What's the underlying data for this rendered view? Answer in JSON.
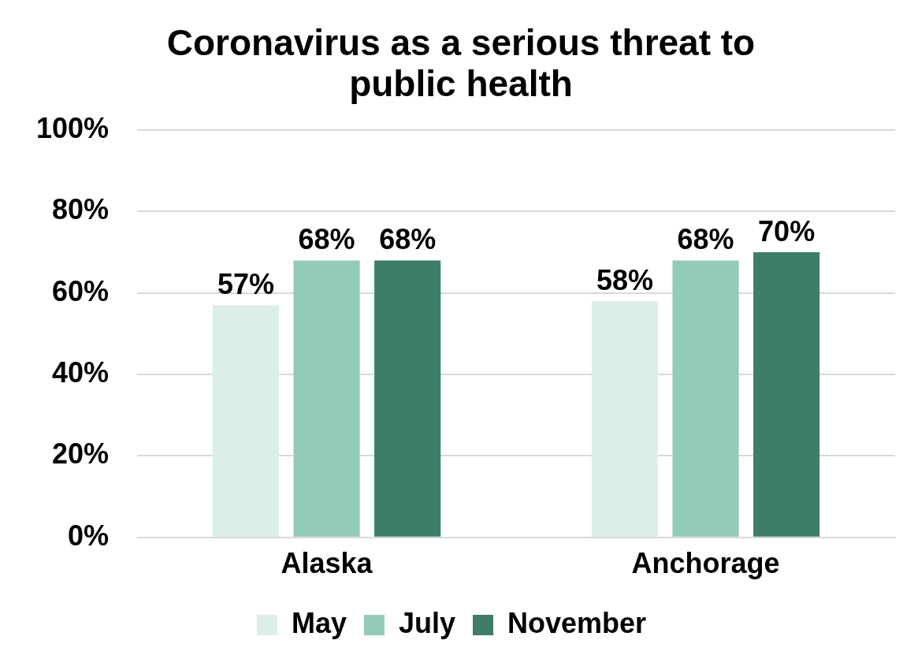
{
  "chart_data": {
    "type": "bar",
    "title": "Coronavirus as a serious threat to public health",
    "categories": [
      "Alaska",
      "Anchorage"
    ],
    "series": [
      {
        "name": "May",
        "color": "#dcefe7",
        "values": [
          57,
          58
        ],
        "value_labels": [
          "57%",
          "58%"
        ]
      },
      {
        "name": "July",
        "color": "#93ccb6",
        "values": [
          68,
          68
        ],
        "value_labels": [
          "68%",
          "68%"
        ]
      },
      {
        "name": "November",
        "color": "#3c7e66",
        "values": [
          68,
          70
        ],
        "value_labels": [
          "68%",
          "70%"
        ]
      }
    ],
    "ylim": [
      0,
      100
    ],
    "yticks": [
      {
        "value": 0,
        "label": "0%"
      },
      {
        "value": 20,
        "label": "20%"
      },
      {
        "value": 40,
        "label": "40%"
      },
      {
        "value": 60,
        "label": "60%"
      },
      {
        "value": 80,
        "label": "80%"
      },
      {
        "value": 100,
        "label": "100%"
      }
    ],
    "grid": "y",
    "legend": "bottom"
  }
}
